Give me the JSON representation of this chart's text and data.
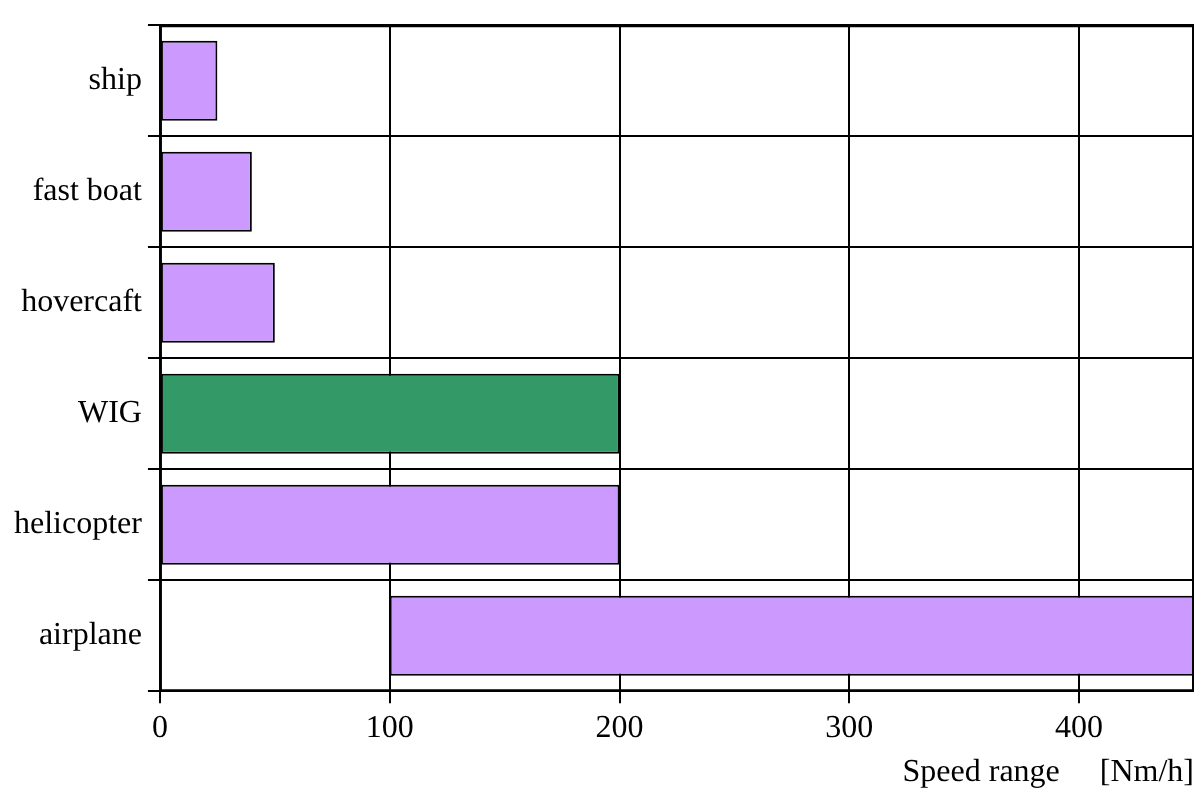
{
  "chart_data": {
    "type": "bar",
    "orientation": "horizontal",
    "xlabel": "Speed range     [Nm/h]",
    "categories": [
      "ship",
      "fast boat",
      "hovercaft",
      "WIG",
      "helicopter",
      "airplane"
    ],
    "base": [
      0,
      0,
      0,
      0,
      0,
      100
    ],
    "values": [
      25,
      40,
      50,
      200,
      200,
      350
    ],
    "colors": [
      "#cc99ff",
      "#cc99ff",
      "#cc99ff",
      "#339966",
      "#cc99ff",
      "#cc99ff"
    ],
    "xlim": [
      0,
      450
    ],
    "xticks": [
      0,
      100,
      200,
      300,
      400
    ],
    "grid": true,
    "legend": false
  }
}
